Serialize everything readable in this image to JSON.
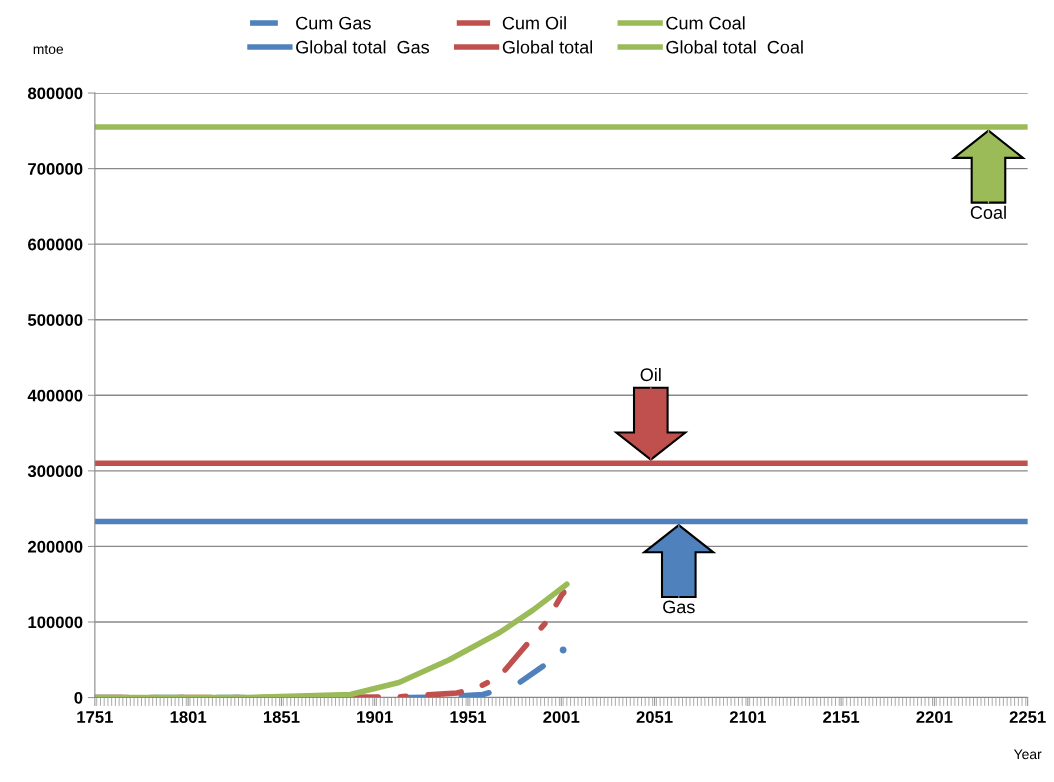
{
  "chart_data": {
    "type": "line",
    "xlabel": "Year",
    "ylabel": "mtoe",
    "xlim": [
      1751,
      2251
    ],
    "xticks": [
      1751,
      1801,
      1851,
      1901,
      1951,
      2001,
      2051,
      2101,
      2151,
      2201,
      2251
    ],
    "ylim": [
      0,
      800000
    ],
    "yticks": [
      0,
      100000,
      200000,
      300000,
      400000,
      500000,
      600000,
      700000,
      800000
    ],
    "grid": "y",
    "legend": "top",
    "series": [
      {
        "name": "Cum Gas",
        "color": "#4f81bd",
        "line_style": "dashed",
        "x": [
          1751,
          1900,
          1920,
          1940,
          1959,
          1977,
          1995,
          2002
        ],
        "values": [
          0,
          0,
          0,
          1000,
          4000,
          17000,
          48000,
          63000
        ]
      },
      {
        "name": "Global total  Gas",
        "color": "#4f81bd",
        "line_style": "solid",
        "x": [
          1751,
          2251
        ],
        "values": [
          233000,
          233000
        ]
      },
      {
        "name": "Cum Oil",
        "color": "#c0504d",
        "line_style": "dashdot",
        "x": [
          1751,
          1860,
          1914,
          1945,
          1956,
          1968,
          1980,
          1993,
          2002
        ],
        "values": [
          0,
          0,
          1000,
          6000,
          13000,
          28000,
          63000,
          100000,
          139000
        ]
      },
      {
        "name": "Global total",
        "color": "#c0504d",
        "line_style": "solid",
        "x": [
          1751,
          2251
        ],
        "values": [
          310000,
          310000
        ]
      },
      {
        "name": "Cum Coal",
        "color": "#9bbb59",
        "line_style": "solid",
        "x": [
          1751,
          1832,
          1888,
          1914,
          1941,
          1968,
          1986,
          2004
        ],
        "values": [
          0,
          0,
          4000,
          20000,
          50000,
          86000,
          116000,
          150000
        ]
      },
      {
        "name": "Global total  Coal",
        "color": "#9bbb59",
        "line_style": "solid",
        "x": [
          1751,
          2251
        ],
        "values": [
          755000,
          755000
        ]
      }
    ],
    "annotations": [
      {
        "text": "Coal",
        "x": 2230,
        "y": 755000
      },
      {
        "text": "Oil",
        "x": 2049,
        "y": 310000
      },
      {
        "text": "Gas",
        "x": 2064,
        "y": 233000
      }
    ]
  }
}
